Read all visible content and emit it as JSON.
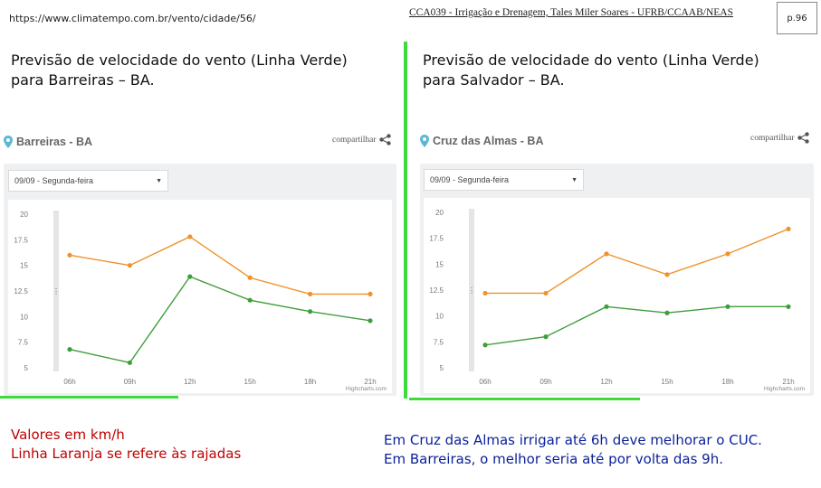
{
  "header": {
    "url": "https://www.climatempo.com.br/vento/cidade/56/",
    "course": "CCA039 - Irrigação e Drenagem, Tales Miler Soares - UFRB/CCAAB/NEAS",
    "page": "p.96"
  },
  "left": {
    "title_line1": "Previsão de velocidade do vento (Linha Verde)",
    "title_line2": "para Barreiras – BA.",
    "city": "Barreiras - BA",
    "share": "compartilhar",
    "select": "09/09 - Segunda-feira",
    "credit": "Highcharts.com"
  },
  "right": {
    "title_line1": "Previsão de velocidade do vento (Linha Verde)",
    "title_line2": "para Salvador – BA.",
    "city": "Cruz das Almas - BA",
    "share": "compartilhar",
    "select": "09/09 - Segunda-feira",
    "credit": "Highcharts.com"
  },
  "captions": {
    "units": "Valores em km/h",
    "orange_note": "Linha Laranja se refere às rajadas",
    "conclusion1": "Em Cruz das Almas irrigar até 6h deve melhorar o CUC.",
    "conclusion2": "Em Barreiras, o melhor seria até por volta das 9h."
  },
  "colors": {
    "orange": "#f0922b",
    "green": "#3e9e3a",
    "accent_green": "#3ddc3d",
    "pin": "#5bb8d4"
  },
  "chart_data": [
    {
      "type": "line",
      "categories": [
        "06h",
        "09h",
        "12h",
        "15h",
        "18h",
        "21h"
      ],
      "yticks": [
        "20",
        "17.5",
        "15",
        "12.5",
        "10",
        "7.5",
        "5"
      ],
      "ylim": [
        5,
        20
      ],
      "series": [
        {
          "color": "orange",
          "values": [
            16,
            15,
            17.8,
            13.8,
            12.2,
            12.2
          ]
        },
        {
          "color": "green",
          "values": [
            6.8,
            5.5,
            13.9,
            11.6,
            10.5,
            9.6
          ]
        }
      ]
    },
    {
      "type": "line",
      "categories": [
        "06h",
        "09h",
        "12h",
        "15h",
        "18h",
        "21h"
      ],
      "yticks": [
        "20",
        "17.5",
        "15",
        "12.5",
        "10",
        "7.5",
        "5"
      ],
      "ylim": [
        5,
        20
      ],
      "series": [
        {
          "color": "orange",
          "values": [
            12.2,
            12.2,
            16,
            14,
            16,
            18.4
          ]
        },
        {
          "color": "green",
          "values": [
            7.2,
            8,
            10.9,
            10.3,
            10.9,
            10.9
          ]
        }
      ]
    }
  ]
}
